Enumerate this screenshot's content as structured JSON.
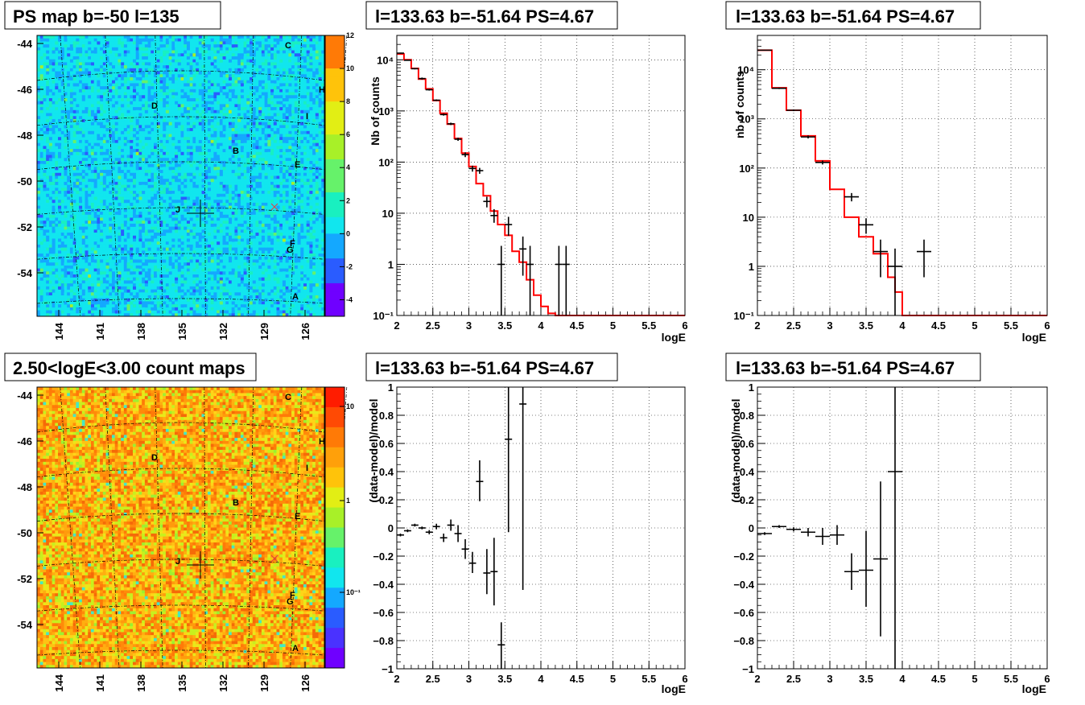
{
  "colors": {
    "model_line": "#ff0000",
    "data": "#000000",
    "grid": "#000000"
  },
  "maps": [
    {
      "id": "ps_map",
      "title": "PS map b=-50 l=135",
      "palette": "ps",
      "colorbar_ticks": [
        "12",
        "10",
        "8",
        "6",
        "4",
        "2",
        "0",
        "-2",
        "-4"
      ],
      "colorbar_range": [
        -5,
        12
      ],
      "y_ticks": [
        "-44",
        "-46",
        "-48",
        "-50",
        "-52",
        "-54"
      ],
      "x_ticks": [
        "144",
        "141",
        "138",
        "135",
        "132",
        "129",
        "126"
      ]
    },
    {
      "id": "count_map",
      "title": "2.50<logE<3.00 count maps",
      "palette": "counts",
      "colorbar_ticks": [
        "10",
        "1",
        "10⁻¹"
      ],
      "y_ticks": [
        "-44",
        "-46",
        "-48",
        "-50",
        "-52",
        "-54"
      ],
      "x_ticks": [
        "144",
        "141",
        "138",
        "135",
        "132",
        "129",
        "126"
      ]
    }
  ],
  "sources": [
    "C",
    "H",
    "D",
    "I",
    "B",
    "E",
    "J",
    "F",
    "G",
    "A"
  ],
  "chart_data": [
    {
      "type": "line",
      "title": "l=133.63 b=-51.64 PS=4.67",
      "xlabel": "logE",
      "ylabel": "Nb of counts",
      "xlim": [
        2,
        6
      ],
      "ylim": [
        0.1,
        30000
      ],
      "log_y": true,
      "grid": true,
      "x_ticks": [
        "2",
        "2.5",
        "3",
        "3.5",
        "4",
        "4.5",
        "5",
        "5.5",
        "6"
      ],
      "y_ticks": [
        {
          "v": 0.1,
          "t": "10⁻¹"
        },
        {
          "v": 1,
          "t": "1"
        },
        {
          "v": 10,
          "t": "10"
        },
        {
          "v": 100,
          "t": "10²"
        },
        {
          "v": 1000,
          "t": "10³"
        },
        {
          "v": 10000,
          "t": "10⁴"
        }
      ],
      "model": {
        "edges": [
          2.0,
          2.1,
          2.2,
          2.3,
          2.4,
          2.5,
          2.6,
          2.7,
          2.8,
          2.9,
          3.0,
          3.1,
          3.2,
          3.3,
          3.4,
          3.5,
          3.6,
          3.7,
          3.8,
          3.9,
          4.0,
          4.1,
          4.2,
          4.3,
          6.0
        ],
        "values": [
          13000,
          10000,
          6800,
          4200,
          2700,
          1600,
          900,
          550,
          290,
          150,
          82,
          38,
          22,
          11,
          6,
          3.7,
          1.8,
          1.1,
          0.5,
          0.25,
          0.15,
          0.11,
          0.1,
          0.1
        ]
      },
      "points": [
        {
          "x": 2.05,
          "y": 13500,
          "xerr": 0.05,
          "ylo": 13200,
          "yhi": 13800
        },
        {
          "x": 2.15,
          "y": 9800,
          "xerr": 0.05,
          "ylo": 9600,
          "yhi": 10000
        },
        {
          "x": 2.25,
          "y": 6700,
          "xerr": 0.05,
          "ylo": 6500,
          "yhi": 6900
        },
        {
          "x": 2.35,
          "y": 4300,
          "xerr": 0.05,
          "ylo": 4100,
          "yhi": 4500
        },
        {
          "x": 2.45,
          "y": 2600,
          "xerr": 0.05,
          "ylo": 2500,
          "yhi": 2700
        },
        {
          "x": 2.55,
          "y": 1620,
          "xerr": 0.05,
          "ylo": 1560,
          "yhi": 1680
        },
        {
          "x": 2.65,
          "y": 850,
          "xerr": 0.05,
          "ylo": 810,
          "yhi": 890
        },
        {
          "x": 2.75,
          "y": 560,
          "xerr": 0.05,
          "ylo": 530,
          "yhi": 590
        },
        {
          "x": 2.85,
          "y": 280,
          "xerr": 0.05,
          "ylo": 260,
          "yhi": 300
        },
        {
          "x": 2.95,
          "y": 140,
          "xerr": 0.05,
          "ylo": 125,
          "yhi": 155
        },
        {
          "x": 3.05,
          "y": 75,
          "xerr": 0.05,
          "ylo": 65,
          "yhi": 85
        },
        {
          "x": 3.15,
          "y": 68,
          "xerr": 0.05,
          "ylo": 59,
          "yhi": 77
        },
        {
          "x": 3.25,
          "y": 17,
          "xerr": 0.05,
          "ylo": 13,
          "yhi": 21
        },
        {
          "x": 3.35,
          "y": 9,
          "xerr": 0.05,
          "ylo": 6.5,
          "yhi": 12
        },
        {
          "x": 3.45,
          "y": 1,
          "xerr": 0.05,
          "ylo": 0.1,
          "yhi": 2.3
        },
        {
          "x": 3.55,
          "y": 6,
          "xerr": 0.05,
          "ylo": 3.6,
          "yhi": 8.5
        },
        {
          "x": 3.75,
          "y": 2,
          "xerr": 0.05,
          "ylo": 0.6,
          "yhi": 3.5
        },
        {
          "x": 3.85,
          "y": 1,
          "xerr": 0.05,
          "ylo": 0.1,
          "yhi": 2.3
        },
        {
          "x": 4.25,
          "y": 1,
          "xerr": 0.05,
          "ylo": 0.1,
          "yhi": 2.3
        },
        {
          "x": 4.35,
          "y": 1,
          "xerr": 0.05,
          "ylo": 0.1,
          "yhi": 2.3
        }
      ]
    },
    {
      "type": "line",
      "title": "l=133.63 b=-51.64 PS=4.67",
      "xlabel": "logE",
      "ylabel": "nb of counts",
      "xlim": [
        2,
        6
      ],
      "ylim": [
        0.1,
        50000
      ],
      "log_y": true,
      "grid": true,
      "x_ticks": [
        "2",
        "2.5",
        "3",
        "3.5",
        "4",
        "4.5",
        "5",
        "5.5",
        "6"
      ],
      "y_ticks": [
        {
          "v": 0.1,
          "t": "10⁻¹"
        },
        {
          "v": 1,
          "t": "1"
        },
        {
          "v": 10,
          "t": "10"
        },
        {
          "v": 100,
          "t": "10²"
        },
        {
          "v": 1000,
          "t": "10³"
        },
        {
          "v": 10000,
          "t": "10⁴"
        }
      ],
      "model": {
        "edges": [
          2.0,
          2.2,
          2.4,
          2.6,
          2.8,
          3.0,
          3.2,
          3.4,
          3.6,
          3.8,
          3.9,
          4.0,
          4.2,
          6.0
        ],
        "values": [
          25000,
          4300,
          1500,
          450,
          140,
          37,
          10,
          4,
          1.8,
          0.6,
          0.3,
          0.1,
          0.1
        ]
      },
      "points": [
        {
          "x": 2.1,
          "y": 25000,
          "xerr": 0.1,
          "ylo": 24600,
          "yhi": 25400
        },
        {
          "x": 2.3,
          "y": 4200,
          "xerr": 0.1,
          "ylo": 4050,
          "yhi": 4350
        },
        {
          "x": 2.5,
          "y": 1500,
          "xerr": 0.1,
          "ylo": 1440,
          "yhi": 1560
        },
        {
          "x": 2.7,
          "y": 430,
          "xerr": 0.1,
          "ylo": 400,
          "yhi": 460
        },
        {
          "x": 2.9,
          "y": 130,
          "xerr": 0.1,
          "ylo": 118,
          "yhi": 142
        },
        {
          "x": 3.3,
          "y": 26,
          "xerr": 0.1,
          "ylo": 21,
          "yhi": 31
        },
        {
          "x": 3.5,
          "y": 7,
          "xerr": 0.1,
          "ylo": 4.6,
          "yhi": 9.5
        },
        {
          "x": 3.7,
          "y": 2,
          "xerr": 0.1,
          "ylo": 0.6,
          "yhi": 3.5
        },
        {
          "x": 3.9,
          "y": 1,
          "xerr": 0.1,
          "ylo": 0.1,
          "yhi": 2.3
        },
        {
          "x": 4.3,
          "y": 2,
          "xerr": 0.1,
          "ylo": 0.6,
          "yhi": 3.5
        }
      ]
    },
    {
      "type": "scatter",
      "title": "l=133.63 b=-51.64 PS=4.67",
      "xlabel": "logE",
      "ylabel": "(data-model)/model",
      "xlim": [
        2,
        6
      ],
      "ylim": [
        -1,
        1
      ],
      "grid": true,
      "x_ticks": [
        "2",
        "2.5",
        "3",
        "3.5",
        "4",
        "4.5",
        "5",
        "5.5",
        "6"
      ],
      "y_ticks": [
        {
          "v": -1,
          "t": "−1"
        },
        {
          "v": -0.8,
          "t": "−0.8"
        },
        {
          "v": -0.6,
          "t": "−0.6"
        },
        {
          "v": -0.4,
          "t": "−0.4"
        },
        {
          "v": -0.2,
          "t": "−0.2"
        },
        {
          "v": 0,
          "t": "0"
        },
        {
          "v": 0.2,
          "t": "0.2"
        },
        {
          "v": 0.4,
          "t": "0.4"
        },
        {
          "v": 0.6,
          "t": "0.6"
        },
        {
          "v": 0.8,
          "t": "0.8"
        },
        {
          "v": 1,
          "t": "1"
        }
      ],
      "points": [
        {
          "x": 2.05,
          "y": -0.05,
          "xerr": 0.05,
          "ylo": -0.06,
          "yhi": -0.04
        },
        {
          "x": 2.15,
          "y": -0.02,
          "xerr": 0.05,
          "ylo": -0.03,
          "yhi": -0.01
        },
        {
          "x": 2.25,
          "y": 0.02,
          "xerr": 0.05,
          "ylo": 0.01,
          "yhi": 0.03
        },
        {
          "x": 2.35,
          "y": 0.0,
          "xerr": 0.05,
          "ylo": -0.01,
          "yhi": 0.01
        },
        {
          "x": 2.45,
          "y": -0.03,
          "xerr": 0.05,
          "ylo": -0.045,
          "yhi": -0.015
        },
        {
          "x": 2.55,
          "y": 0.01,
          "xerr": 0.05,
          "ylo": -0.01,
          "yhi": 0.03
        },
        {
          "x": 2.65,
          "y": -0.07,
          "xerr": 0.05,
          "ylo": -0.1,
          "yhi": -0.04
        },
        {
          "x": 2.75,
          "y": 0.02,
          "xerr": 0.05,
          "ylo": -0.02,
          "yhi": 0.06
        },
        {
          "x": 2.85,
          "y": -0.04,
          "xerr": 0.05,
          "ylo": -0.1,
          "yhi": 0.02
        },
        {
          "x": 2.95,
          "y": -0.15,
          "xerr": 0.05,
          "ylo": -0.22,
          "yhi": -0.08
        },
        {
          "x": 3.05,
          "y": -0.25,
          "xerr": 0.05,
          "ylo": -0.32,
          "yhi": -0.17
        },
        {
          "x": 3.15,
          "y": 0.33,
          "xerr": 0.05,
          "ylo": 0.19,
          "yhi": 0.48
        },
        {
          "x": 3.25,
          "y": -0.32,
          "xerr": 0.05,
          "ylo": -0.47,
          "yhi": -0.15
        },
        {
          "x": 3.35,
          "y": -0.31,
          "xerr": 0.05,
          "ylo": -0.55,
          "yhi": -0.07
        },
        {
          "x": 3.45,
          "y": -0.83,
          "xerr": 0.05,
          "ylo": -1.0,
          "yhi": -0.67
        },
        {
          "x": 3.55,
          "y": 0.63,
          "xerr": 0.05,
          "ylo": -0.03,
          "yhi": 1.0
        },
        {
          "x": 3.75,
          "y": 0.88,
          "xerr": 0.05,
          "ylo": -0.44,
          "yhi": 1.0
        }
      ]
    },
    {
      "type": "scatter",
      "title": "l=133.63 b=-51.64 PS=4.67",
      "xlabel": "logE",
      "ylabel": "(data-model)/model",
      "xlim": [
        2,
        6
      ],
      "ylim": [
        -1,
        1
      ],
      "grid": true,
      "x_ticks": [
        "2",
        "2.5",
        "3",
        "3.5",
        "4",
        "4.5",
        "5",
        "5.5",
        "6"
      ],
      "y_ticks": [
        {
          "v": -1,
          "t": "−1"
        },
        {
          "v": -0.8,
          "t": "−0.8"
        },
        {
          "v": -0.6,
          "t": "−0.6"
        },
        {
          "v": -0.4,
          "t": "−0.4"
        },
        {
          "v": -0.2,
          "t": "−0.2"
        },
        {
          "v": 0,
          "t": "0"
        },
        {
          "v": 0.2,
          "t": "0.2"
        },
        {
          "v": 0.4,
          "t": "0.4"
        },
        {
          "v": 0.6,
          "t": "0.6"
        },
        {
          "v": 0.8,
          "t": "0.8"
        },
        {
          "v": 1,
          "t": "1"
        }
      ],
      "points": [
        {
          "x": 2.1,
          "y": -0.04,
          "xerr": 0.1,
          "ylo": -0.05,
          "yhi": -0.03
        },
        {
          "x": 2.3,
          "y": 0.01,
          "xerr": 0.1,
          "ylo": 0.0,
          "yhi": 0.02
        },
        {
          "x": 2.5,
          "y": -0.01,
          "xerr": 0.1,
          "ylo": -0.025,
          "yhi": 0.005
        },
        {
          "x": 2.7,
          "y": -0.03,
          "xerr": 0.1,
          "ylo": -0.06,
          "yhi": 0.0
        },
        {
          "x": 2.9,
          "y": -0.06,
          "xerr": 0.1,
          "ylo": -0.12,
          "yhi": 0.0
        },
        {
          "x": 3.1,
          "y": -0.05,
          "xerr": 0.1,
          "ylo": -0.12,
          "yhi": 0.02
        },
        {
          "x": 3.3,
          "y": -0.31,
          "xerr": 0.1,
          "ylo": -0.44,
          "yhi": -0.18
        },
        {
          "x": 3.5,
          "y": -0.3,
          "xerr": 0.1,
          "ylo": -0.56,
          "yhi": -0.02
        },
        {
          "x": 3.7,
          "y": -0.22,
          "xerr": 0.1,
          "ylo": -0.77,
          "yhi": 0.33
        },
        {
          "x": 3.9,
          "y": 0.4,
          "xerr": 0.1,
          "ylo": -1.0,
          "yhi": 1.0
        }
      ]
    }
  ]
}
